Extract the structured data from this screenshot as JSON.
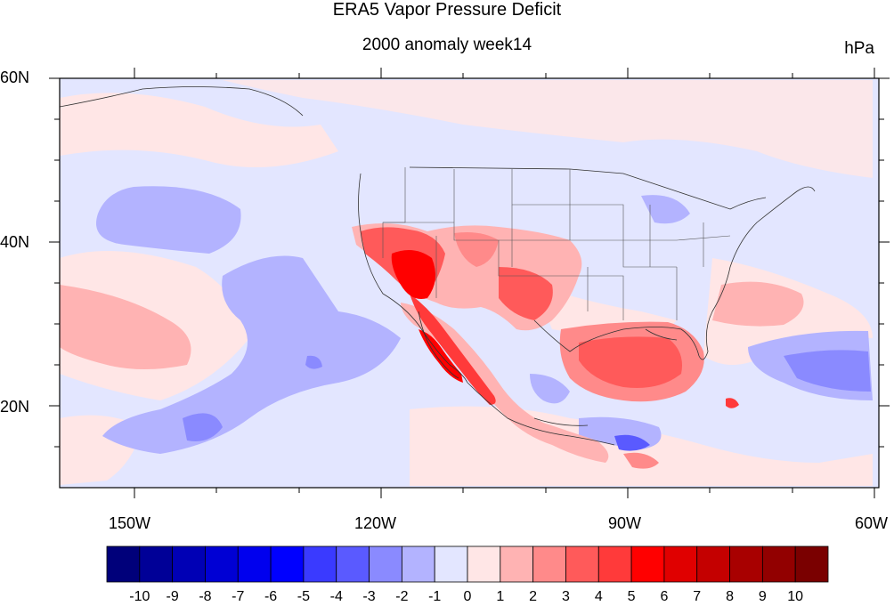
{
  "title": "ERA5 Vapor Pressure Deficit",
  "subtitle": "2000 anomaly week14",
  "units": "hPa",
  "map": {
    "lat_labels": [
      "60N",
      "40N",
      "20N"
    ],
    "lon_labels": [
      "150W",
      "120W",
      "90W",
      "60W"
    ],
    "lon_range": [
      -159,
      -60
    ],
    "lat_range": [
      10,
      60
    ]
  },
  "colorbar": {
    "labels": [
      "-10",
      "-9",
      "-8",
      "-7",
      "-6",
      "-5",
      "-4",
      "-3",
      "-2",
      "-1",
      "0",
      "1",
      "2",
      "3",
      "4",
      "5",
      "6",
      "7",
      "8",
      "9",
      "10"
    ],
    "colors": [
      "#00007a",
      "#000097",
      "#0000b5",
      "#0000d4",
      "#0000ee",
      "#0000ff",
      "#3a3aff",
      "#5a5aff",
      "#8a8aff",
      "#b3b3ff",
      "#e3e6ff",
      "#ffe6e6",
      "#ffb3b3",
      "#ff8a8a",
      "#ff5a5a",
      "#ff3a3a",
      "#ff0000",
      "#e00000",
      "#c40000",
      "#a80000",
      "#920000",
      "#7a0000"
    ]
  }
}
